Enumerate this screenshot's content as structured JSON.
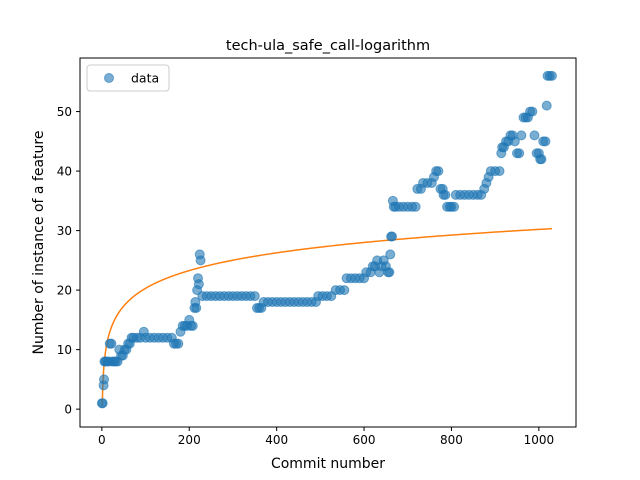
{
  "chart_data": {
    "type": "scatter",
    "title": "tech-ula_safe_call-logarithm",
    "xlabel": "Commit number",
    "ylabel": "Number of instance of a feature",
    "xlim": [
      -50,
      1085
    ],
    "ylim": [
      -3,
      59
    ],
    "xticks": [
      0,
      200,
      400,
      600,
      800,
      1000
    ],
    "yticks": [
      0,
      10,
      20,
      30,
      40,
      50
    ],
    "legend": {
      "position": "top-left",
      "entries": [
        "data"
      ]
    },
    "colors": {
      "data": "#1f77b4",
      "fit": "#ff7f0e"
    },
    "series": [
      {
        "name": "data",
        "kind": "scatter",
        "points": [
          [
            0,
            1
          ],
          [
            2,
            1
          ],
          [
            4,
            4
          ],
          [
            5,
            5
          ],
          [
            6,
            8
          ],
          [
            8,
            8
          ],
          [
            12,
            8
          ],
          [
            16,
            8
          ],
          [
            18,
            11
          ],
          [
            22,
            11
          ],
          [
            24,
            8
          ],
          [
            28,
            8
          ],
          [
            32,
            8
          ],
          [
            36,
            8
          ],
          [
            40,
            10
          ],
          [
            44,
            9
          ],
          [
            48,
            9
          ],
          [
            52,
            10
          ],
          [
            56,
            10
          ],
          [
            60,
            11
          ],
          [
            64,
            11
          ],
          [
            68,
            12
          ],
          [
            72,
            12
          ],
          [
            80,
            12
          ],
          [
            88,
            12
          ],
          [
            96,
            13
          ],
          [
            100,
            12
          ],
          [
            110,
            12
          ],
          [
            120,
            12
          ],
          [
            130,
            12
          ],
          [
            140,
            12
          ],
          [
            150,
            12
          ],
          [
            160,
            12
          ],
          [
            165,
            11
          ],
          [
            170,
            11
          ],
          [
            175,
            11
          ],
          [
            180,
            13
          ],
          [
            185,
            14
          ],
          [
            190,
            14
          ],
          [
            195,
            14
          ],
          [
            200,
            15
          ],
          [
            204,
            14
          ],
          [
            208,
            14
          ],
          [
            212,
            17
          ],
          [
            214,
            18
          ],
          [
            216,
            17
          ],
          [
            218,
            20
          ],
          [
            220,
            22
          ],
          [
            222,
            21
          ],
          [
            224,
            26
          ],
          [
            226,
            25
          ],
          [
            230,
            19
          ],
          [
            240,
            19
          ],
          [
            250,
            19
          ],
          [
            260,
            19
          ],
          [
            270,
            19
          ],
          [
            280,
            19
          ],
          [
            290,
            19
          ],
          [
            300,
            19
          ],
          [
            310,
            19
          ],
          [
            320,
            19
          ],
          [
            330,
            19
          ],
          [
            340,
            19
          ],
          [
            350,
            19
          ],
          [
            355,
            17
          ],
          [
            360,
            17
          ],
          [
            365,
            17
          ],
          [
            370,
            18
          ],
          [
            380,
            18
          ],
          [
            390,
            18
          ],
          [
            400,
            18
          ],
          [
            410,
            18
          ],
          [
            420,
            18
          ],
          [
            430,
            18
          ],
          [
            440,
            18
          ],
          [
            450,
            18
          ],
          [
            460,
            18
          ],
          [
            470,
            18
          ],
          [
            480,
            18
          ],
          [
            490,
            18
          ],
          [
            495,
            19
          ],
          [
            505,
            19
          ],
          [
            515,
            19
          ],
          [
            525,
            19
          ],
          [
            535,
            20
          ],
          [
            545,
            20
          ],
          [
            555,
            20
          ],
          [
            560,
            22
          ],
          [
            570,
            22
          ],
          [
            580,
            22
          ],
          [
            590,
            22
          ],
          [
            600,
            22
          ],
          [
            605,
            23
          ],
          [
            615,
            23
          ],
          [
            620,
            24
          ],
          [
            625,
            24
          ],
          [
            630,
            25
          ],
          [
            635,
            23
          ],
          [
            640,
            24
          ],
          [
            645,
            25
          ],
          [
            650,
            24
          ],
          [
            655,
            23
          ],
          [
            658,
            23
          ],
          [
            660,
            26
          ],
          [
            662,
            29
          ],
          [
            664,
            29
          ],
          [
            666,
            35
          ],
          [
            668,
            34
          ],
          [
            672,
            34
          ],
          [
            680,
            34
          ],
          [
            690,
            34
          ],
          [
            700,
            34
          ],
          [
            710,
            34
          ],
          [
            718,
            34
          ],
          [
            722,
            37
          ],
          [
            730,
            37
          ],
          [
            735,
            38
          ],
          [
            745,
            38
          ],
          [
            755,
            38
          ],
          [
            760,
            39
          ],
          [
            765,
            40
          ],
          [
            770,
            40
          ],
          [
            775,
            37
          ],
          [
            780,
            37
          ],
          [
            782,
            36
          ],
          [
            786,
            36
          ],
          [
            790,
            34
          ],
          [
            796,
            34
          ],
          [
            800,
            34
          ],
          [
            806,
            34
          ],
          [
            810,
            36
          ],
          [
            820,
            36
          ],
          [
            830,
            36
          ],
          [
            840,
            36
          ],
          [
            850,
            36
          ],
          [
            860,
            36
          ],
          [
            868,
            36
          ],
          [
            875,
            37
          ],
          [
            880,
            38
          ],
          [
            885,
            39
          ],
          [
            890,
            40
          ],
          [
            900,
            40
          ],
          [
            910,
            40
          ],
          [
            914,
            43
          ],
          [
            916,
            44
          ],
          [
            920,
            44
          ],
          [
            925,
            45
          ],
          [
            930,
            45
          ],
          [
            935,
            46
          ],
          [
            940,
            46
          ],
          [
            945,
            45
          ],
          [
            950,
            43
          ],
          [
            955,
            43
          ],
          [
            960,
            46
          ],
          [
            965,
            49
          ],
          [
            970,
            49
          ],
          [
            975,
            49
          ],
          [
            980,
            50
          ],
          [
            985,
            50
          ],
          [
            990,
            46
          ],
          [
            995,
            43
          ],
          [
            1000,
            43
          ],
          [
            1003,
            42
          ],
          [
            1006,
            42
          ],
          [
            1010,
            45
          ],
          [
            1015,
            45
          ],
          [
            1018,
            51
          ],
          [
            1020,
            56
          ],
          [
            1025,
            56
          ],
          [
            1030,
            56
          ]
        ]
      },
      {
        "name": "fit",
        "kind": "line",
        "x_range": [
          1,
          1030
        ],
        "model": "a + b*ln(x)",
        "a": 0.5,
        "b": 4.3
      }
    ]
  }
}
